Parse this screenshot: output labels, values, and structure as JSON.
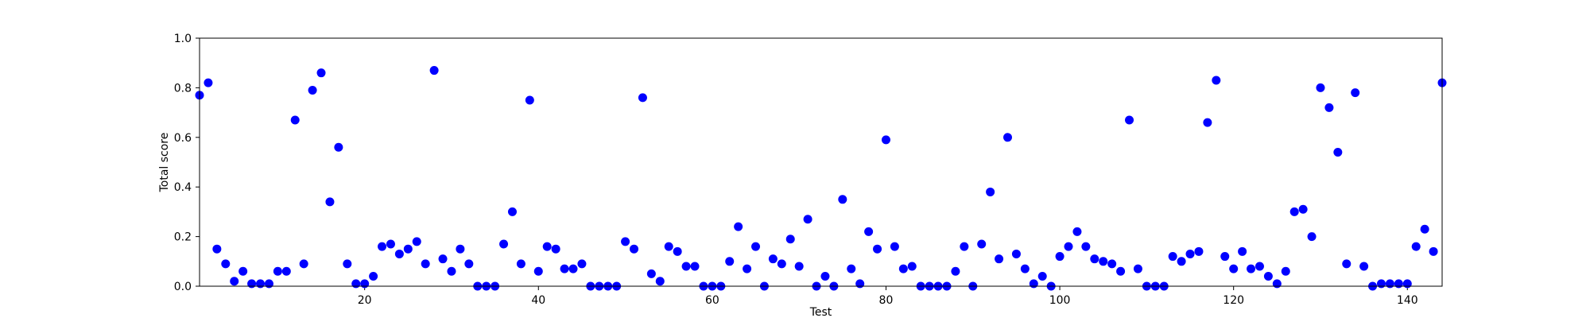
{
  "chart_data": {
    "type": "scatter",
    "title": "",
    "xlabel": "Test",
    "ylabel": "Total score",
    "xlim": [
      1,
      144
    ],
    "ylim": [
      0,
      1.0
    ],
    "xticks": [
      20,
      40,
      60,
      80,
      100,
      120,
      140
    ],
    "yticks": [
      0.0,
      0.2,
      0.4,
      0.6,
      0.8,
      1.0
    ],
    "ytick_labels": [
      "0.0",
      "0.2",
      "0.4",
      "0.6",
      "0.8",
      "1.0"
    ],
    "marker_color": "#0000ff",
    "grid": false,
    "legend": "none",
    "x": [
      1,
      2,
      3,
      4,
      5,
      6,
      7,
      8,
      9,
      10,
      11,
      12,
      13,
      14,
      15,
      16,
      17,
      18,
      19,
      20,
      21,
      22,
      23,
      24,
      25,
      26,
      27,
      28,
      29,
      30,
      31,
      32,
      33,
      34,
      35,
      36,
      37,
      38,
      39,
      40,
      41,
      42,
      43,
      44,
      45,
      46,
      47,
      48,
      49,
      50,
      51,
      52,
      53,
      54,
      55,
      56,
      57,
      58,
      59,
      60,
      61,
      62,
      63,
      64,
      65,
      66,
      67,
      68,
      69,
      70,
      71,
      72,
      73,
      74,
      75,
      76,
      77,
      78,
      79,
      80,
      81,
      82,
      83,
      84,
      85,
      86,
      87,
      88,
      89,
      90,
      91,
      92,
      93,
      94,
      95,
      96,
      97,
      98,
      99,
      100,
      101,
      102,
      103,
      104,
      105,
      106,
      107,
      108,
      109,
      110,
      111,
      112,
      113,
      114,
      115,
      116,
      117,
      118,
      119,
      120,
      121,
      122,
      123,
      124,
      125,
      126,
      127,
      128,
      129,
      130,
      131,
      132,
      133,
      134,
      135,
      136,
      137,
      138,
      139,
      140,
      141,
      142,
      143,
      144
    ],
    "y": [
      0.77,
      0.82,
      0.15,
      0.09,
      0.02,
      0.06,
      0.01,
      0.01,
      0.01,
      0.06,
      0.06,
      0.67,
      0.09,
      0.79,
      0.86,
      0.34,
      0.56,
      0.09,
      0.01,
      0.01,
      0.04,
      0.16,
      0.17,
      0.13,
      0.15,
      0.18,
      0.09,
      0.87,
      0.11,
      0.06,
      0.15,
      0.09,
      0.0,
      0.0,
      0.0,
      0.17,
      0.3,
      0.09,
      0.75,
      0.06,
      0.16,
      0.15,
      0.07,
      0.07,
      0.09,
      0.0,
      0.0,
      0.0,
      0.0,
      0.18,
      0.15,
      0.76,
      0.05,
      0.02,
      0.16,
      0.14,
      0.08,
      0.08,
      0.0,
      0.0,
      0.0,
      0.1,
      0.24,
      0.07,
      0.16,
      0.0,
      0.11,
      0.09,
      0.19,
      0.08,
      0.27,
      0.0,
      0.04,
      0.0,
      0.35,
      0.07,
      0.01,
      0.22,
      0.15,
      0.59,
      0.16,
      0.07,
      0.08,
      0.0,
      0.0,
      0.0,
      0.0,
      0.06,
      0.16,
      0.0,
      0.17,
      0.38,
      0.11,
      0.6,
      0.13,
      0.07,
      0.01,
      0.04,
      0.0,
      0.12,
      0.16,
      0.22,
      0.16,
      0.11,
      0.1,
      0.09,
      0.06,
      0.67,
      0.07,
      0.0,
      0.0,
      0.0,
      0.12,
      0.1,
      0.13,
      0.14,
      0.66,
      0.83,
      0.12,
      0.07,
      0.14,
      0.07,
      0.08,
      0.04,
      0.01,
      0.06,
      0.3,
      0.31,
      0.2,
      0.8,
      0.72,
      0.54,
      0.09,
      0.78,
      0.08,
      0.0,
      0.01,
      0.01,
      0.01,
      0.01,
      0.16,
      0.23,
      0.14,
      0.82
    ]
  }
}
